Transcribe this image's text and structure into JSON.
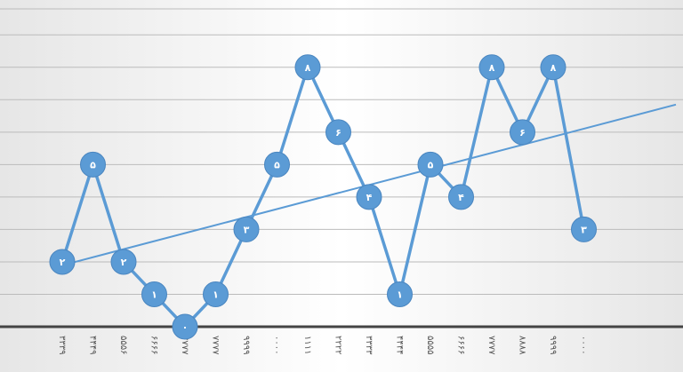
{
  "chart_data": {
    "type": "line",
    "categories": [
      "۳۳۳۹",
      "۴۴۴۹",
      "۵۵۵۶",
      "۶۶۶۶",
      "۷۷۷۷",
      "۷۷۷۷",
      "۹۹۹۹",
      "۰۰۰۰",
      "۱۱۱۱",
      "۲۲۲۲",
      "۳۳۳۳",
      "۴۴۴۴",
      "۵۵۵۵",
      "۶۶۶۶",
      "۷۷۷۷",
      "۸۸۸۸",
      "۹۹۹۹",
      "۰۰۰۰"
    ],
    "values": [
      2,
      5,
      2,
      1,
      0,
      1,
      3,
      5,
      8,
      6,
      4,
      1,
      5,
      4,
      8,
      6,
      8,
      3
    ],
    "value_labels": [
      "۲",
      "۵",
      "۲",
      "۱",
      "۰",
      "۱",
      "۳",
      "۵",
      "۸",
      "۶",
      "۴",
      "۱",
      "۵",
      "۴",
      "۸",
      "۶",
      "۸",
      "۳"
    ],
    "color": "#5b9bd5",
    "ylim": [
      0,
      9.8
    ],
    "grid": true,
    "trendline": true
  }
}
